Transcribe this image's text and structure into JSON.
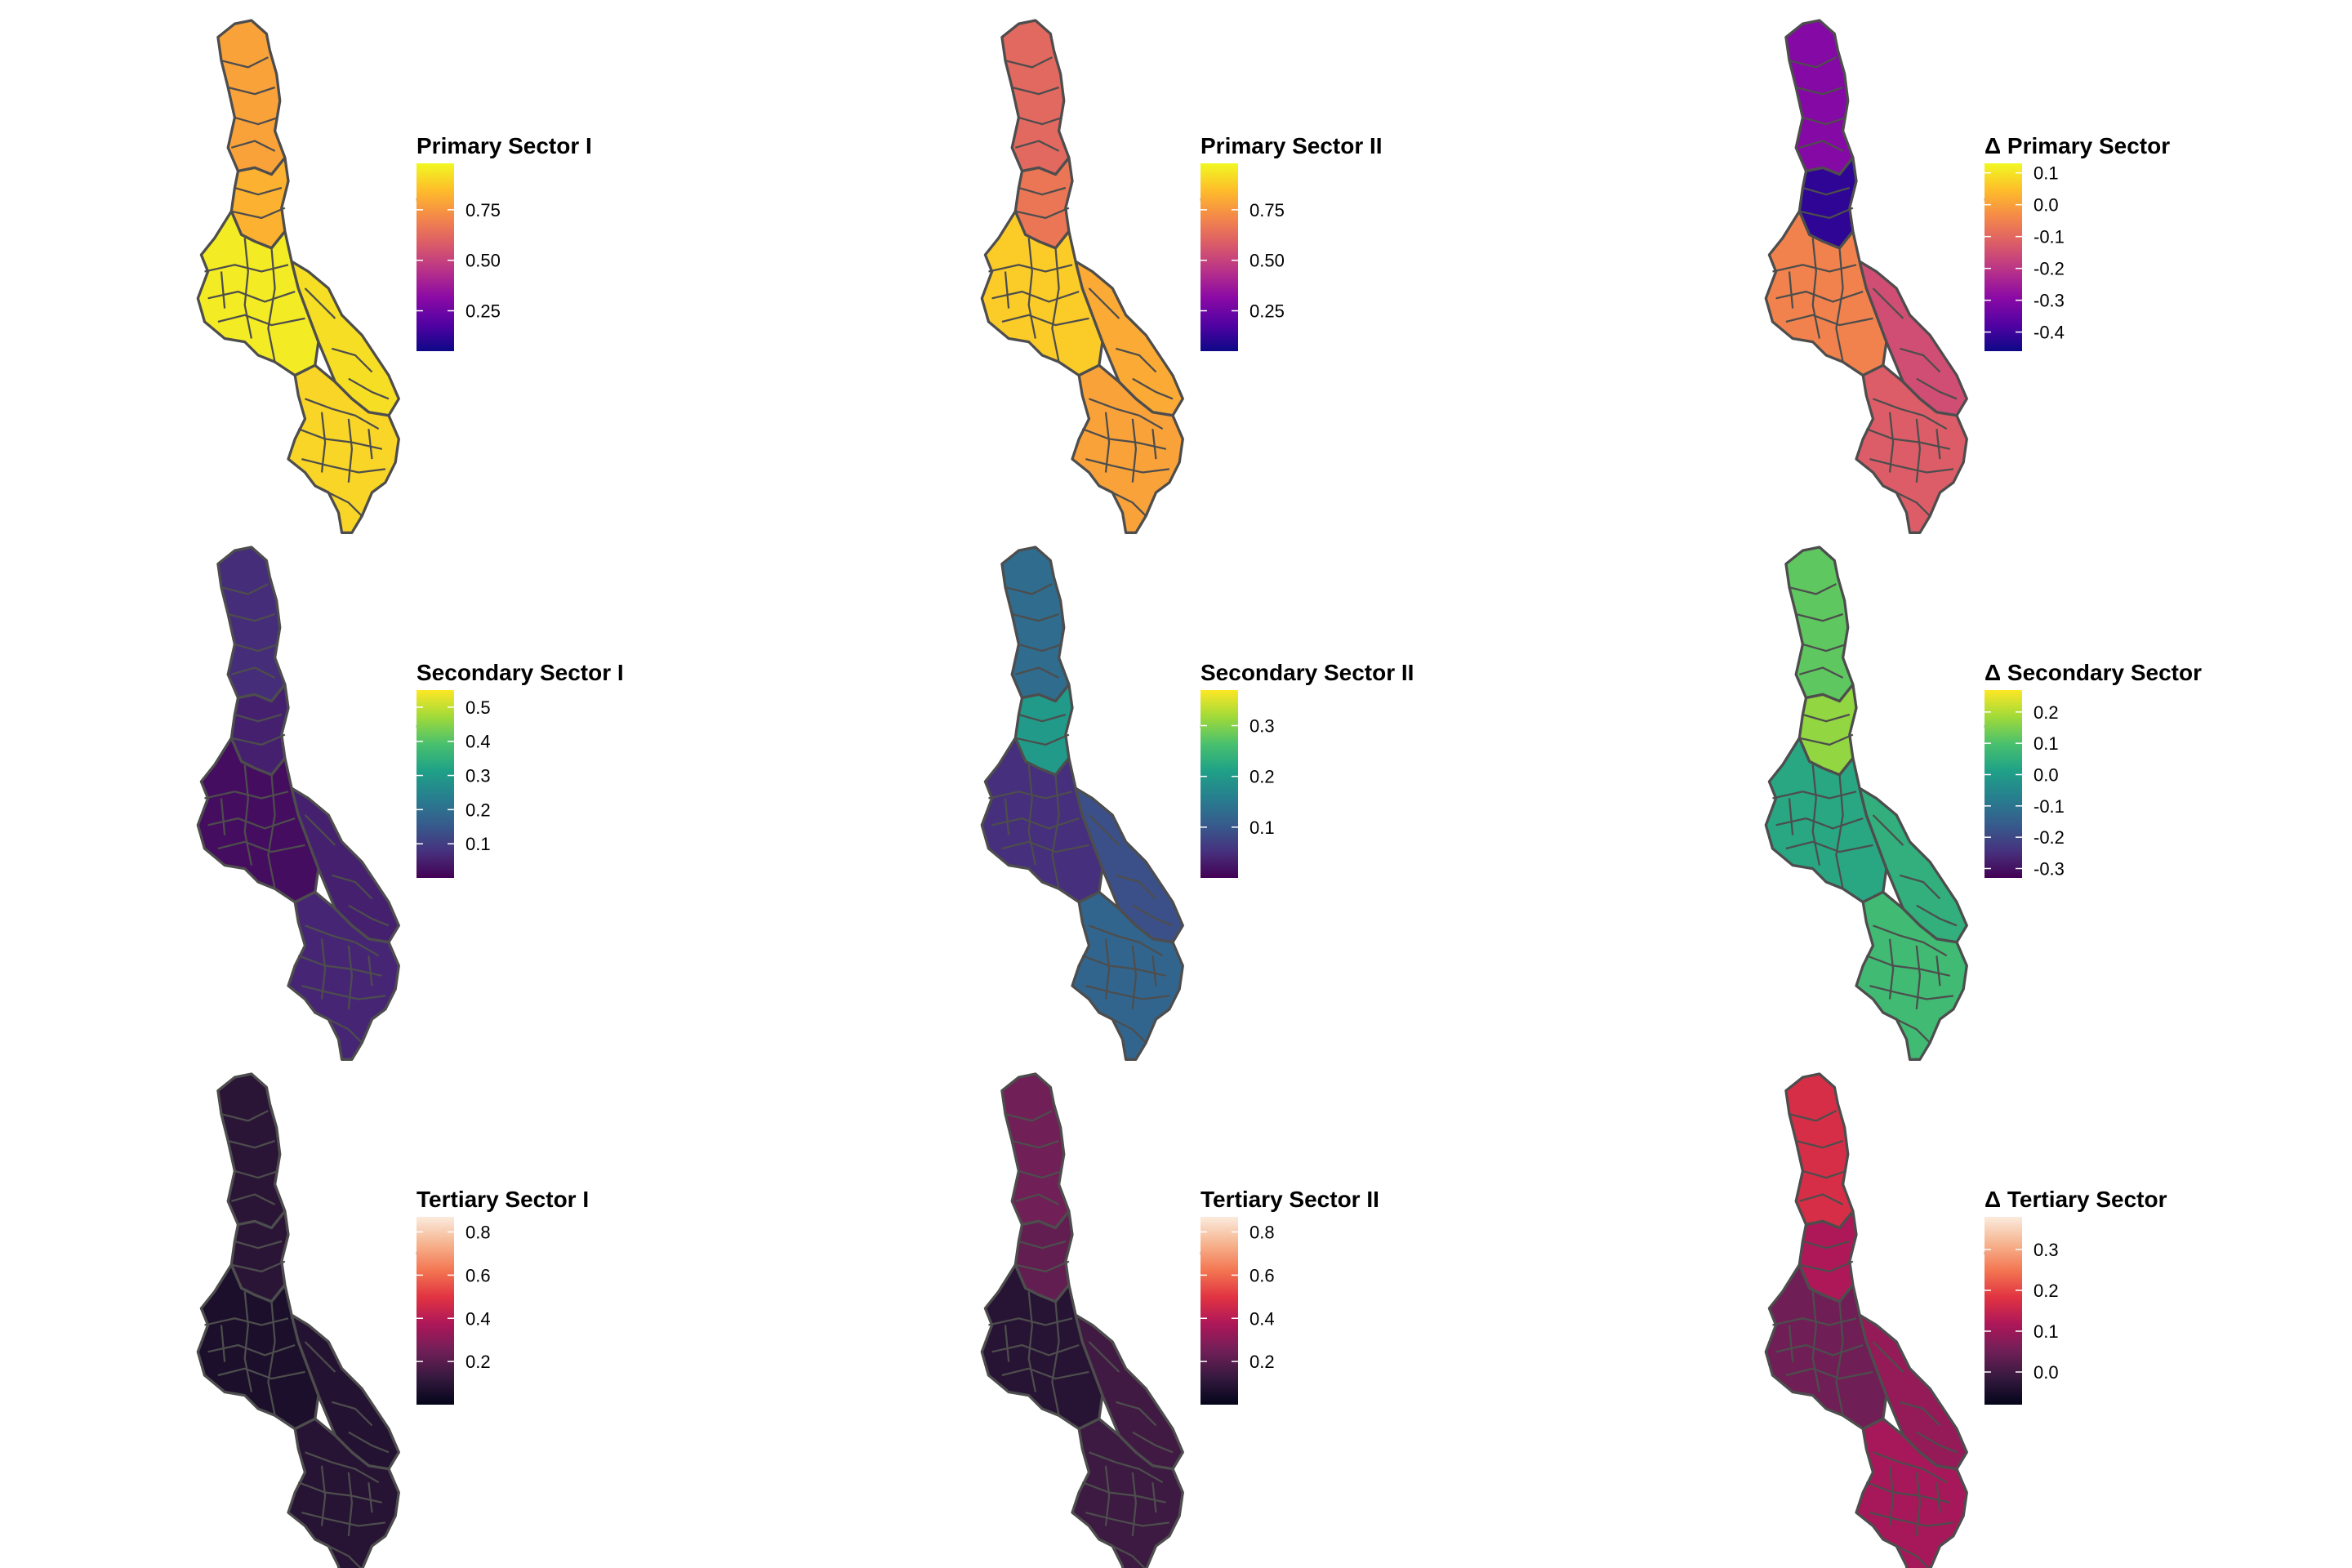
{
  "figure": {
    "background": "#ffffff",
    "border_color": "#4d4d4d"
  },
  "panels": [
    {
      "id": "primary-1",
      "legend_title": "Primary Sector I",
      "palette": "plasma",
      "ticks": [
        "0.75",
        "0.50",
        "0.25"
      ],
      "tick_values": [
        0.75,
        0.5,
        0.25
      ],
      "range": [
        0.05,
        0.98
      ],
      "regions": {
        "north": 0.78,
        "north_mid": 0.82,
        "center": 0.95,
        "lake": 0.92,
        "south": 0.9
      }
    },
    {
      "id": "primary-2",
      "legend_title": "Primary Sector II",
      "palette": "plasma",
      "ticks": [
        "0.75",
        "0.50",
        "0.25"
      ],
      "tick_values": [
        0.75,
        0.5,
        0.25
      ],
      "range": [
        0.05,
        0.98
      ],
      "regions": {
        "north": 0.62,
        "north_mid": 0.66,
        "center": 0.88,
        "lake": 0.8,
        "south": 0.78
      }
    },
    {
      "id": "primary-delta",
      "legend_title": "Δ Primary Sector",
      "palette": "plasma",
      "ticks": [
        "0.1",
        "0.0",
        "-0.1",
        "-0.2",
        "-0.3",
        "-0.4"
      ],
      "tick_values": [
        0.1,
        0.0,
        -0.1,
        -0.2,
        -0.3,
        -0.4
      ],
      "range": [
        -0.46,
        0.13
      ],
      "regions": {
        "north": -0.3,
        "north_mid": -0.42,
        "center": -0.05,
        "lake": -0.15,
        "south": -0.12
      }
    },
    {
      "id": "secondary-1",
      "legend_title": "Secondary Sector I",
      "palette": "viridis",
      "ticks": [
        "0.5",
        "0.4",
        "0.3",
        "0.2",
        "0.1"
      ],
      "tick_values": [
        0.5,
        0.4,
        0.3,
        0.2,
        0.1
      ],
      "range": [
        0.0,
        0.55
      ],
      "regions": {
        "north": 0.07,
        "north_mid": 0.05,
        "center": 0.02,
        "lake": 0.05,
        "south": 0.06
      }
    },
    {
      "id": "secondary-2",
      "legend_title": "Secondary Sector II",
      "palette": "viridis",
      "ticks": [
        "0.3",
        "0.2",
        "0.1"
      ],
      "tick_values": [
        0.3,
        0.2,
        0.1
      ],
      "range": [
        0.0,
        0.37
      ],
      "regions": {
        "north": 0.13,
        "north_mid": 0.2,
        "center": 0.05,
        "lake": 0.09,
        "south": 0.12
      }
    },
    {
      "id": "secondary-delta",
      "legend_title": "Δ Secondary Sector",
      "palette": "viridis",
      "ticks": [
        "0.2",
        "0.1",
        "0.0",
        "-0.1",
        "-0.2",
        "-0.3"
      ],
      "tick_values": [
        0.2,
        0.1,
        0.0,
        -0.1,
        -0.2,
        -0.3
      ],
      "range": [
        -0.33,
        0.27
      ],
      "regions": {
        "north": 0.12,
        "north_mid": 0.17,
        "center": 0.03,
        "lake": 0.05,
        "south": 0.08
      }
    },
    {
      "id": "tertiary-1",
      "legend_title": "Tertiary Sector I",
      "palette": "rocket",
      "ticks": [
        "0.8",
        "0.6",
        "0.4",
        "0.2"
      ],
      "tick_values": [
        0.8,
        0.6,
        0.4,
        0.2
      ],
      "range": [
        0.0,
        0.87
      ],
      "regions": {
        "north": 0.1,
        "north_mid": 0.1,
        "center": 0.06,
        "lake": 0.08,
        "south": 0.09
      }
    },
    {
      "id": "tertiary-2",
      "legend_title": "Tertiary Sector II",
      "palette": "rocket",
      "ticks": [
        "0.8",
        "0.6",
        "0.4",
        "0.2"
      ],
      "tick_values": [
        0.8,
        0.6,
        0.4,
        0.2
      ],
      "range": [
        0.0,
        0.87
      ],
      "regions": {
        "north": 0.25,
        "north_mid": 0.22,
        "center": 0.09,
        "lake": 0.15,
        "south": 0.14
      }
    },
    {
      "id": "tertiary-delta",
      "legend_title": "Δ Tertiary Sector",
      "palette": "rocket",
      "ticks": [
        "0.3",
        "0.2",
        "0.1",
        "0.0"
      ],
      "tick_values": [
        0.3,
        0.2,
        0.1,
        0.0
      ],
      "range": [
        -0.08,
        0.38
      ],
      "regions": {
        "north": 0.17,
        "north_mid": 0.12,
        "center": 0.05,
        "lake": 0.09,
        "south": 0.11
      }
    }
  ]
}
